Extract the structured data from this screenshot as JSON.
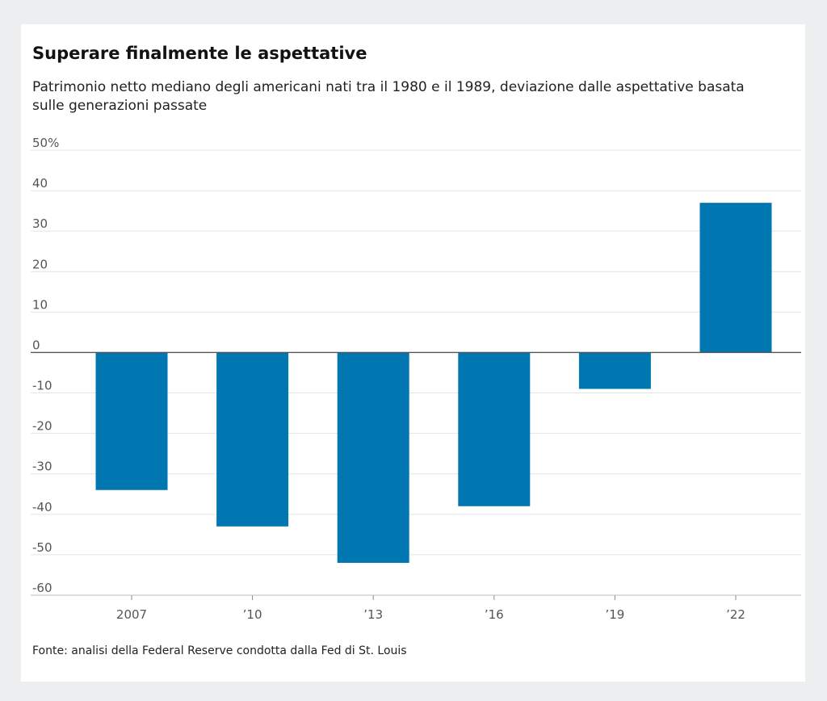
{
  "title": "Superare finalmente le aspettative",
  "subtitle": "Patrimonio netto mediano degli americani nati tra il 1980 e il 1989, deviazione dalle aspettative basata sulle generazioni passate",
  "source": "Fonte: analisi della Federal Reserve condotta dalla Fed di St. Louis",
  "colors": {
    "bar": "#0077b0",
    "grid": "#e2e4e6",
    "zero_line": "#555555",
    "background": "#eceef0",
    "card": "#ffffff"
  },
  "chart_data": {
    "type": "bar",
    "categories": [
      "2007",
      "’10",
      "’13",
      "’16",
      "’19",
      "’22"
    ],
    "values": [
      -34,
      -43,
      -52,
      -38,
      -9,
      37
    ],
    "yticks": [
      50,
      40,
      30,
      20,
      10,
      0,
      -10,
      -20,
      -30,
      -40,
      -50,
      -60
    ],
    "ytick_labels": [
      "50%",
      "40",
      "30",
      "20",
      "10",
      "0",
      "-10",
      "-20",
      "-30",
      "-40",
      "-50",
      "-60"
    ],
    "ylim": [
      -60,
      50
    ],
    "grid": true,
    "xlabel": "",
    "ylabel": ""
  }
}
